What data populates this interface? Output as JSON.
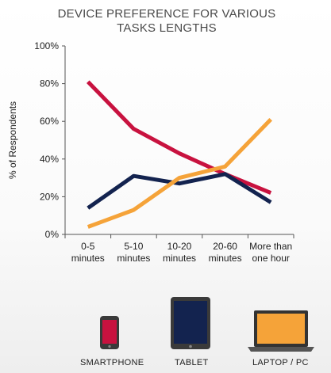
{
  "chart_data": {
    "type": "line",
    "title": "DEVICE PREFERENCE FOR VARIOUS TASKS LENGTHS",
    "ylabel": "% of Respondents",
    "xlabel": "",
    "categories": [
      [
        "0-5",
        "minutes"
      ],
      [
        "5-10",
        "minutes"
      ],
      [
        "10-20",
        "minutes"
      ],
      [
        "20-60",
        "minutes"
      ],
      [
        "More than",
        "one hour"
      ]
    ],
    "ylim": [
      0,
      100
    ],
    "yticks": [
      "0%",
      "20%",
      "40%",
      "60%",
      "80%",
      "100%"
    ],
    "ytick_values": [
      0,
      20,
      40,
      60,
      80,
      100
    ],
    "grid": false,
    "series": [
      {
        "name": "SMARTPHONE",
        "color": "#c8123f",
        "values": [
          81,
          56,
          43,
          32,
          22
        ]
      },
      {
        "name": "TABLET",
        "color": "#13234f",
        "values": [
          14,
          31,
          27,
          32,
          17
        ]
      },
      {
        "name": "LAPTOP / PC",
        "color": "#f5a339",
        "values": [
          4,
          13,
          30,
          36,
          61
        ]
      }
    ],
    "legend_position": "bottom",
    "legend_icons": [
      "smartphone-icon",
      "tablet-icon",
      "laptop-icon"
    ]
  }
}
